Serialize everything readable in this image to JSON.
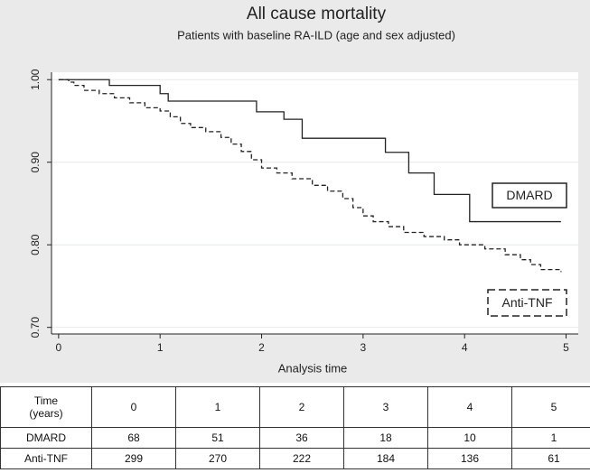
{
  "chart_data": {
    "type": "line",
    "step": "post",
    "title": "All cause mortality",
    "subtitle": "Patients with baseline RA-ILD (age and sex adjusted)",
    "xlabel": "Analysis time",
    "xlim": [
      -0.07,
      5.12
    ],
    "ylim": [
      0.692,
      1.009
    ],
    "xticks": [
      0,
      1,
      2,
      3,
      4,
      5
    ],
    "yticks": [
      {
        "value": 1.0,
        "label": "1.00"
      },
      {
        "value": 0.9,
        "label": "0.90"
      },
      {
        "value": 0.8,
        "label": "0.80"
      },
      {
        "value": 0.7,
        "label": "0.70"
      }
    ],
    "grid": true,
    "series": [
      {
        "name": "DMARD",
        "color": "#222222",
        "dash": "solid",
        "x": [
          0,
          0.5,
          1.0,
          1.08,
          1.95,
          2.22,
          2.4,
          3.22,
          3.45,
          3.7,
          4.05,
          4.95
        ],
        "values": [
          1.0,
          0.993,
          0.983,
          0.974,
          0.961,
          0.952,
          0.929,
          0.912,
          0.887,
          0.861,
          0.828,
          0.828
        ]
      },
      {
        "name": "Anti-TNF",
        "color": "#222222",
        "dash": "dashed",
        "x": [
          0,
          0.1,
          0.15,
          0.25,
          0.4,
          0.55,
          0.7,
          0.85,
          1.0,
          1.1,
          1.2,
          1.3,
          1.45,
          1.6,
          1.7,
          1.8,
          1.9,
          2.0,
          2.15,
          2.3,
          2.5,
          2.65,
          2.8,
          2.9,
          3.0,
          3.1,
          3.25,
          3.4,
          3.6,
          3.8,
          3.95,
          4.2,
          4.4,
          4.55,
          4.65,
          4.75,
          4.95
        ],
        "values": [
          1.0,
          0.997,
          0.993,
          0.987,
          0.983,
          0.978,
          0.972,
          0.966,
          0.962,
          0.955,
          0.947,
          0.942,
          0.937,
          0.93,
          0.922,
          0.913,
          0.903,
          0.893,
          0.887,
          0.88,
          0.872,
          0.865,
          0.856,
          0.845,
          0.835,
          0.828,
          0.822,
          0.815,
          0.81,
          0.806,
          0.8,
          0.795,
          0.788,
          0.782,
          0.776,
          0.77,
          0.767
        ]
      }
    ]
  },
  "risk_table": {
    "corner": "Time\n(years)",
    "times": [
      0,
      1,
      2,
      3,
      4,
      5
    ],
    "rows": [
      {
        "label": "DMARD",
        "values": [
          68,
          51,
          36,
          18,
          10,
          1
        ]
      },
      {
        "label": "Anti-TNF",
        "values": [
          299,
          270,
          222,
          184,
          136,
          61
        ]
      }
    ]
  }
}
